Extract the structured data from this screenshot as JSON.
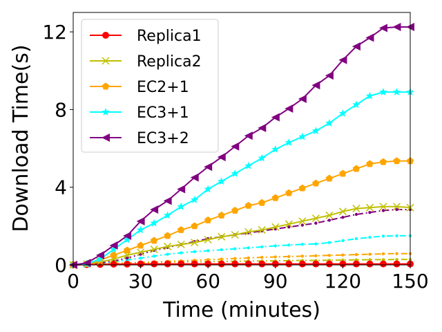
{
  "chart_data": {
    "type": "line",
    "title": "",
    "xlabel": "Time (minutes)",
    "ylabel": "Download Time(s)",
    "xlim": [
      0,
      150
    ],
    "ylim": [
      0,
      13
    ],
    "xticks": [
      0,
      30,
      60,
      90,
      120,
      150
    ],
    "yticks": [
      0,
      4,
      8,
      12
    ],
    "grid": false,
    "legend_position": "top-left",
    "series": [
      {
        "name": "Replica1",
        "color": "#ff0000",
        "marker": "circle",
        "linestyle": "solid",
        "x": [
          0,
          6,
          12,
          18,
          24,
          30,
          36,
          42,
          48,
          54,
          60,
          66,
          72,
          78,
          84,
          90,
          96,
          102,
          108,
          114,
          120,
          126,
          132,
          138,
          144,
          150
        ],
        "values": [
          0,
          0.02,
          0.03,
          0.04,
          0.04,
          0.05,
          0.05,
          0.05,
          0.05,
          0.05,
          0.05,
          0.05,
          0.05,
          0.05,
          0.05,
          0.05,
          0.05,
          0.05,
          0.05,
          0.05,
          0.05,
          0.05,
          0.05,
          0.05,
          0.05,
          0.05
        ]
      },
      {
        "name": "Replica2",
        "color": "#bfbf00",
        "marker": "x",
        "linestyle": "solid",
        "x": [
          0,
          6,
          12,
          18,
          24,
          30,
          36,
          42,
          48,
          54,
          60,
          66,
          72,
          78,
          84,
          90,
          96,
          102,
          108,
          114,
          120,
          126,
          132,
          138,
          144,
          150
        ],
        "values": [
          0,
          0.05,
          0.15,
          0.3,
          0.5,
          0.65,
          0.8,
          0.95,
          1.05,
          1.15,
          1.3,
          1.45,
          1.55,
          1.7,
          1.8,
          1.95,
          2.1,
          2.25,
          2.4,
          2.55,
          2.75,
          2.9,
          2.95,
          3.0,
          3.0,
          2.95
        ]
      },
      {
        "name": "EC2+1",
        "color": "#ffa500",
        "marker": "pentagon",
        "linestyle": "solid",
        "x": [
          0,
          6,
          12,
          18,
          24,
          30,
          36,
          42,
          48,
          54,
          60,
          66,
          72,
          78,
          84,
          90,
          96,
          102,
          108,
          114,
          120,
          126,
          132,
          138,
          144,
          150
        ],
        "values": [
          0,
          0.05,
          0.25,
          0.5,
          0.75,
          1.0,
          1.25,
          1.5,
          1.8,
          2.0,
          2.3,
          2.55,
          2.8,
          3.05,
          3.2,
          3.45,
          3.7,
          3.95,
          4.2,
          4.45,
          4.7,
          4.95,
          5.2,
          5.3,
          5.35,
          5.35
        ]
      },
      {
        "name": "EC3+1",
        "color": "#00ffff",
        "marker": "star",
        "linestyle": "solid",
        "x": [
          0,
          6,
          12,
          18,
          24,
          30,
          36,
          42,
          48,
          54,
          60,
          66,
          72,
          78,
          84,
          90,
          96,
          102,
          108,
          114,
          120,
          126,
          132,
          138,
          144,
          150
        ],
        "values": [
          0,
          0.05,
          0.3,
          0.8,
          1.3,
          1.8,
          2.15,
          2.55,
          3.0,
          3.35,
          3.9,
          4.3,
          4.7,
          5.1,
          5.5,
          5.95,
          6.3,
          6.6,
          6.9,
          7.3,
          7.8,
          8.25,
          8.7,
          8.9,
          8.9,
          8.9
        ]
      },
      {
        "name": "EC3+2",
        "color": "#800080",
        "marker": "triangle-left",
        "linestyle": "solid",
        "x": [
          0,
          6,
          12,
          18,
          24,
          30,
          36,
          42,
          48,
          54,
          60,
          66,
          72,
          78,
          84,
          90,
          96,
          102,
          108,
          114,
          120,
          126,
          132,
          138,
          144,
          150
        ],
        "values": [
          0,
          0.1,
          0.5,
          1.0,
          1.5,
          2.25,
          2.85,
          3.3,
          3.9,
          4.5,
          5.05,
          5.55,
          6.1,
          6.65,
          7.05,
          7.6,
          8.05,
          8.55,
          9.25,
          9.75,
          10.55,
          11.25,
          11.7,
          12.2,
          12.25,
          12.25
        ]
      }
    ],
    "extra_series": [
      {
        "name": "",
        "color": "#bfbf00",
        "linestyle": "dashdot",
        "x": [
          0,
          6,
          12,
          18,
          24,
          30,
          36,
          42,
          48,
          54,
          60,
          66,
          72,
          78,
          84,
          90,
          96,
          102,
          108,
          114,
          120,
          126,
          132,
          138,
          144,
          150
        ],
        "values": [
          0,
          0.02,
          0.04,
          0.06,
          0.08,
          0.1,
          0.12,
          0.14,
          0.15,
          0.16,
          0.17,
          0.18,
          0.19,
          0.2,
          0.2,
          0.21,
          0.22,
          0.23,
          0.23,
          0.24,
          0.25,
          0.26,
          0.27,
          0.27,
          0.28,
          0.28
        ]
      },
      {
        "name": "",
        "color": "#ffa500",
        "linestyle": "dashdot",
        "x": [
          0,
          6,
          12,
          18,
          24,
          30,
          36,
          42,
          48,
          54,
          60,
          66,
          72,
          78,
          84,
          90,
          96,
          102,
          108,
          114,
          120,
          126,
          132,
          138,
          144,
          150
        ],
        "values": [
          0,
          0.02,
          0.05,
          0.08,
          0.1,
          0.13,
          0.16,
          0.19,
          0.21,
          0.24,
          0.27,
          0.3,
          0.33,
          0.36,
          0.39,
          0.41,
          0.43,
          0.45,
          0.47,
          0.49,
          0.51,
          0.53,
          0.55,
          0.57,
          0.58,
          0.58
        ]
      },
      {
        "name": "",
        "color": "#00ffff",
        "linestyle": "dashdot",
        "x": [
          0,
          6,
          12,
          18,
          24,
          30,
          36,
          42,
          48,
          54,
          60,
          66,
          72,
          78,
          84,
          90,
          96,
          102,
          108,
          114,
          120,
          126,
          132,
          138,
          144,
          150
        ],
        "values": [
          0,
          0.03,
          0.08,
          0.15,
          0.25,
          0.35,
          0.45,
          0.55,
          0.62,
          0.68,
          0.73,
          0.78,
          0.83,
          0.88,
          0.93,
          0.98,
          1.02,
          1.06,
          1.08,
          1.15,
          1.25,
          1.35,
          1.42,
          1.48,
          1.5,
          1.5
        ]
      },
      {
        "name": "",
        "color": "#800080",
        "linestyle": "dashdot",
        "x": [
          0,
          6,
          12,
          18,
          24,
          30,
          36,
          42,
          48,
          54,
          60,
          66,
          72,
          78,
          84,
          90,
          96,
          102,
          108,
          114,
          120,
          126,
          132,
          138,
          144,
          150
        ],
        "values": [
          0,
          0.03,
          0.1,
          0.2,
          0.35,
          0.55,
          0.75,
          0.9,
          1.05,
          1.2,
          1.35,
          1.45,
          1.55,
          1.65,
          1.75,
          1.85,
          1.95,
          2.05,
          2.15,
          2.3,
          2.45,
          2.6,
          2.7,
          2.8,
          2.85,
          2.85
        ]
      }
    ]
  }
}
